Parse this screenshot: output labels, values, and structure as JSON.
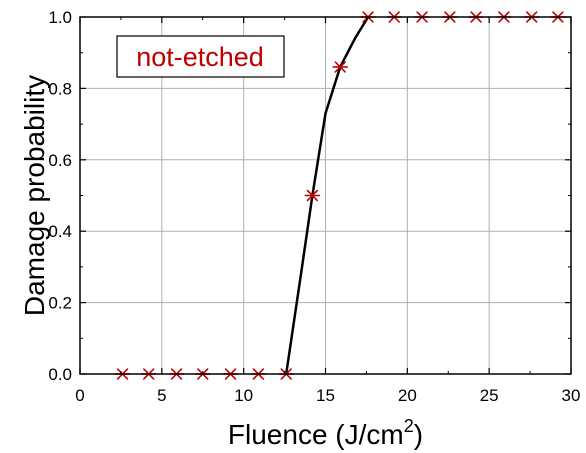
{
  "chart_data": {
    "type": "scatter",
    "xlabel_main": "Fluence (J/cm",
    "xlabel_sup": "2",
    "xlabel_end": ")",
    "ylabel": "Damage probability",
    "xlim": [
      0,
      30
    ],
    "ylim": [
      0,
      1.0
    ],
    "xticks": [
      "0",
      "5",
      "10",
      "15",
      "20",
      "25",
      "30"
    ],
    "yticks": [
      "0.0",
      "0.2",
      "0.4",
      "0.6",
      "0.8",
      "1.0"
    ],
    "grid": true,
    "annotation": "not-etched",
    "marker_color": "#c00000",
    "line_color": "#000000",
    "points": {
      "x": [
        2.6,
        4.2,
        5.9,
        7.5,
        9.2,
        10.9,
        12.6,
        14.2,
        15.9,
        17.6,
        19.2,
        20.9,
        22.6,
        24.2,
        25.9,
        27.6,
        29.2
      ],
      "y": [
        0,
        0,
        0,
        0,
        0,
        0,
        0,
        0.5,
        0.86,
        1,
        1,
        1,
        1,
        1,
        1,
        1,
        1
      ]
    },
    "fit_line": {
      "x": [
        12.6,
        13.5,
        14.2,
        15.0,
        15.9,
        16.8,
        17.6
      ],
      "y": [
        0,
        0.28,
        0.5,
        0.73,
        0.86,
        0.94,
        1.0
      ]
    }
  }
}
